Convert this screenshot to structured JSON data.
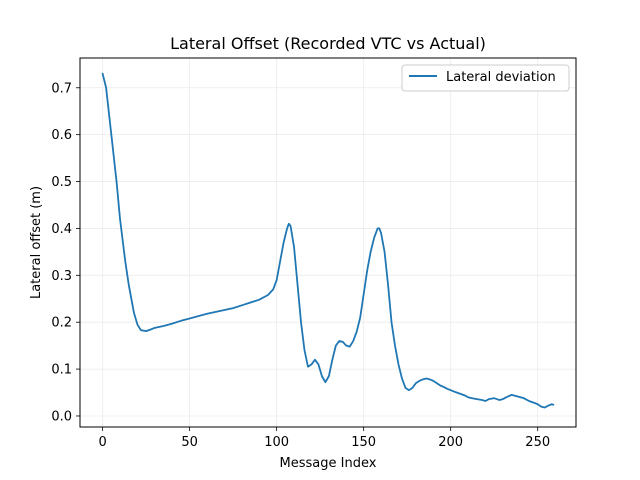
{
  "chart_data": {
    "type": "line",
    "title": "Lateral Offset (Recorded VTC vs Actual)",
    "xlabel": "Message Index",
    "ylabel": "Lateral offset (m)",
    "xlim": [
      -13,
      272
    ],
    "ylim": [
      -0.0235,
      0.7635
    ],
    "xticks": [
      0,
      50,
      100,
      150,
      200,
      250
    ],
    "yticks": [
      0.0,
      0.1,
      0.2,
      0.3,
      0.4,
      0.5,
      0.6,
      0.7
    ],
    "xtick_labels": [
      "0",
      "50",
      "100",
      "150",
      "200",
      "250"
    ],
    "ytick_labels": [
      "0.0",
      "0.1",
      "0.2",
      "0.3",
      "0.4",
      "0.5",
      "0.6",
      "0.7"
    ],
    "grid": true,
    "legend_position": "top-right",
    "series": [
      {
        "name": "Lateral deviation",
        "color": "#1f77b4",
        "x": [
          0,
          2,
          5,
          8,
          10,
          13,
          15,
          18,
          20,
          22,
          25,
          28,
          30,
          35,
          40,
          45,
          50,
          55,
          60,
          65,
          70,
          75,
          80,
          85,
          90,
          95,
          98,
          100,
          102,
          104,
          106,
          107,
          108,
          110,
          112,
          114,
          116,
          118,
          120,
          122,
          124,
          126,
          128,
          130,
          132,
          134,
          136,
          138,
          140,
          142,
          144,
          146,
          148,
          150,
          152,
          154,
          156,
          158,
          159,
          160,
          162,
          164,
          166,
          168,
          170,
          172,
          174,
          176,
          178,
          180,
          182,
          184,
          186,
          188,
          190,
          192,
          194,
          196,
          198,
          200,
          202,
          205,
          208,
          210,
          212,
          215,
          218,
          220,
          222,
          225,
          228,
          230,
          232,
          235,
          238,
          240,
          242,
          245,
          248,
          250,
          252,
          254,
          256,
          258,
          259
        ],
        "values": [
          0.73,
          0.7,
          0.6,
          0.5,
          0.42,
          0.33,
          0.28,
          0.22,
          0.195,
          0.183,
          0.181,
          0.185,
          0.188,
          0.192,
          0.197,
          0.203,
          0.208,
          0.213,
          0.218,
          0.222,
          0.226,
          0.23,
          0.236,
          0.242,
          0.248,
          0.258,
          0.27,
          0.29,
          0.33,
          0.37,
          0.4,
          0.41,
          0.405,
          0.36,
          0.28,
          0.2,
          0.14,
          0.105,
          0.11,
          0.12,
          0.11,
          0.085,
          0.072,
          0.085,
          0.12,
          0.15,
          0.16,
          0.158,
          0.15,
          0.148,
          0.16,
          0.18,
          0.21,
          0.26,
          0.31,
          0.35,
          0.38,
          0.4,
          0.4,
          0.39,
          0.35,
          0.28,
          0.2,
          0.15,
          0.11,
          0.08,
          0.06,
          0.055,
          0.06,
          0.07,
          0.075,
          0.078,
          0.08,
          0.078,
          0.075,
          0.07,
          0.065,
          0.062,
          0.058,
          0.055,
          0.052,
          0.048,
          0.044,
          0.04,
          0.038,
          0.036,
          0.034,
          0.032,
          0.036,
          0.038,
          0.034,
          0.036,
          0.04,
          0.045,
          0.042,
          0.04,
          0.038,
          0.032,
          0.028,
          0.025,
          0.02,
          0.018,
          0.022,
          0.025,
          0.024
        ]
      }
    ]
  }
}
